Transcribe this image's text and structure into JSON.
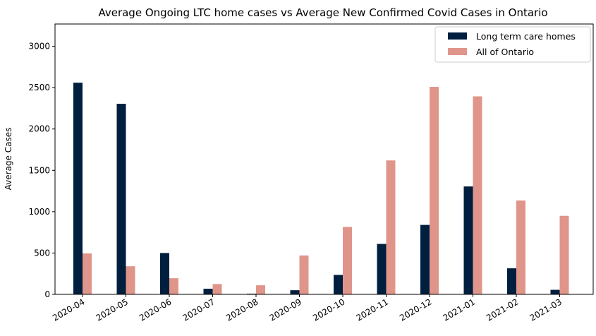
{
  "chart_data": {
    "type": "bar",
    "title": "Average Ongoing LTC home cases vs Average New Confirmed Covid Cases in Ontario",
    "xlabel": "",
    "ylabel": "Average Cases",
    "ylim": [
      0,
      3270
    ],
    "yticks": [
      0,
      500,
      1000,
      1500,
      2000,
      2500,
      3000
    ],
    "grid": false,
    "legend_position": "top-right",
    "categories": [
      "2020-04",
      "2020-05",
      "2020-06",
      "2020-07",
      "2020-08",
      "2020-09",
      "2020-10",
      "2020-11",
      "2020-12",
      "2021-01",
      "2021-02",
      "2021-03"
    ],
    "series": [
      {
        "name": "Long term care homes",
        "color": "#001f3f",
        "values": [
          2560,
          2305,
          500,
          68,
          8,
          50,
          235,
          610,
          840,
          1305,
          315,
          55
        ]
      },
      {
        "name": "All of Ontario",
        "color": "#e0958a",
        "values": [
          495,
          340,
          195,
          125,
          110,
          470,
          815,
          1620,
          2510,
          2395,
          1135,
          950
        ]
      }
    ]
  }
}
